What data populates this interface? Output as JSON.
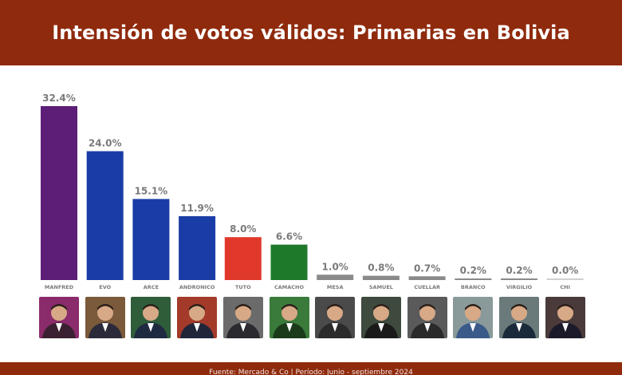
{
  "header": {
    "title": "Intensión de votos válidos: Primarias en Bolivia"
  },
  "footer": {
    "source": "Fuente: Mercado & Co | Período: Junio - septiembre 2024"
  },
  "colors": {
    "header_bg": "#8f2a0d",
    "label_gray": "#7a7a7a"
  },
  "chart_data": {
    "type": "bar",
    "title": "Intensión de votos válidos: Primarias en Bolivia",
    "categories": [
      "MANFRED",
      "EVO",
      "ARCE",
      "ANDRONICO",
      "TUTO",
      "CAMACHO",
      "MESA",
      "SAMUEL",
      "CUELLAR",
      "BRANCO",
      "VIRGILIO",
      "CHI"
    ],
    "values": [
      32.4,
      24.0,
      15.1,
      11.9,
      8.0,
      6.6,
      1.0,
      0.8,
      0.7,
      0.2,
      0.2,
      0.0
    ],
    "value_labels": [
      "32.4%",
      "24.0%",
      "15.1%",
      "11.9%",
      "8.0%",
      "6.6%",
      "1.0%",
      "0.8%",
      "0.7%",
      "0.2%",
      "0.2%",
      "0.0%"
    ],
    "bar_colors": [
      "#5c1e76",
      "#1a3ca6",
      "#1a3ca6",
      "#1a3ca6",
      "#e0392c",
      "#1e7a2a",
      "#8a8a8a",
      "#8a8a8a",
      "#8a8a8a",
      "#8a8a8a",
      "#8a8a8a",
      "#cfcfcf"
    ],
    "ylim": [
      0,
      35
    ],
    "grid": false,
    "legend": "none"
  }
}
